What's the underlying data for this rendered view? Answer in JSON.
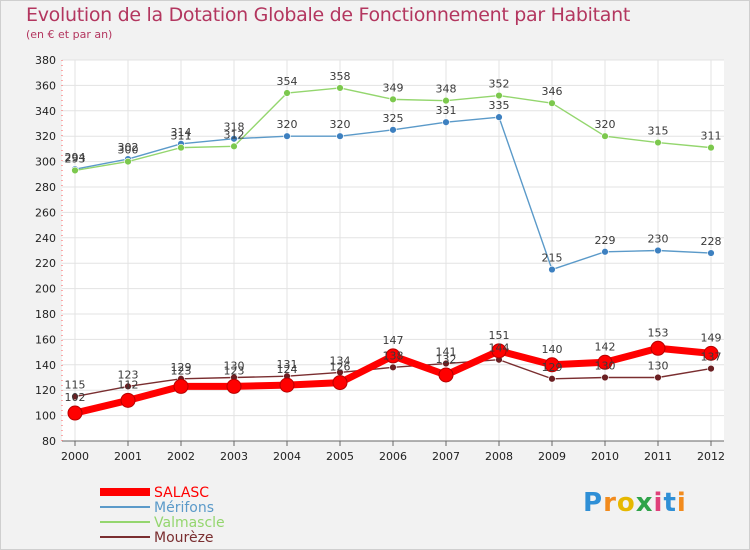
{
  "chart_data": {
    "type": "line",
    "title": "Evolution de la Dotation Globale de Fonctionnement par Habitant",
    "subtitle": "(en € et par an)",
    "xlabel": "",
    "ylabel": "",
    "x": [
      "2000",
      "2001",
      "2002",
      "2003",
      "2004",
      "2005",
      "2006",
      "2007",
      "2008",
      "2009",
      "2010",
      "2011",
      "2012"
    ],
    "ylim": [
      80,
      380
    ],
    "yticks": [
      80,
      100,
      120,
      140,
      160,
      180,
      200,
      220,
      240,
      260,
      280,
      300,
      320,
      340,
      360,
      380
    ],
    "grid": true,
    "legend_position": "bottom-left",
    "series": [
      {
        "name": "Mérifons",
        "color": "#5b9ac9",
        "marker_color": "#3d80c0",
        "values": [
          294,
          302,
          314,
          318,
          320,
          320,
          325,
          331,
          335,
          215,
          229,
          230,
          228
        ],
        "labels": [
          "294",
          "302",
          "314",
          "318",
          "320",
          "320",
          "325",
          "331",
          "335",
          "215",
          "229",
          "230",
          "228"
        ]
      },
      {
        "name": "Valmascle",
        "color": "#94d66e",
        "marker_color": "#7cc84d",
        "values": [
          293,
          300,
          311,
          312,
          354,
          358,
          349,
          348,
          352,
          346,
          320,
          315,
          311
        ],
        "labels": [
          "293",
          "300",
          "311",
          "312",
          "354",
          "358",
          "349",
          "348",
          "352",
          "346",
          "320",
          "315",
          "311"
        ]
      },
      {
        "name": "Mourèze",
        "color": "#7a2e30",
        "marker_color": "#6b1f22",
        "values": [
          115,
          123,
          129,
          130,
          131,
          134,
          138,
          141,
          144,
          129,
          130,
          130,
          137
        ],
        "labels": [
          "115",
          "123",
          "129",
          "130",
          "131",
          "134",
          "138",
          "141",
          "144",
          "129",
          "130",
          "130",
          "137"
        ]
      },
      {
        "name": "SALASC",
        "color": "#ff0000",
        "marker_color": "#ff0000",
        "values": [
          102,
          112,
          123,
          123,
          124,
          126,
          147,
          132,
          151,
          140,
          142,
          153,
          149
        ],
        "labels": [
          "102",
          "112",
          "123",
          "123",
          "124",
          "126",
          "147",
          "132",
          "151",
          "140",
          "142",
          "153",
          "149"
        ]
      }
    ],
    "legend": [
      {
        "name": "SALASC",
        "color": "#ff0000"
      },
      {
        "name": "Mérifons",
        "color": "#5b9ac9"
      },
      {
        "name": "Valmascle",
        "color": "#94d66e"
      },
      {
        "name": "Mourèze",
        "color": "#7a2e30"
      }
    ]
  },
  "logo": {
    "letters": [
      "P",
      "r",
      "o",
      "x",
      "i",
      "t",
      "i"
    ],
    "colors": [
      "#2f8fd6",
      "#f28b1d",
      "#e6b800",
      "#2fa34a",
      "#e0407a",
      "#2f8fd6",
      "#f28b1d"
    ]
  }
}
